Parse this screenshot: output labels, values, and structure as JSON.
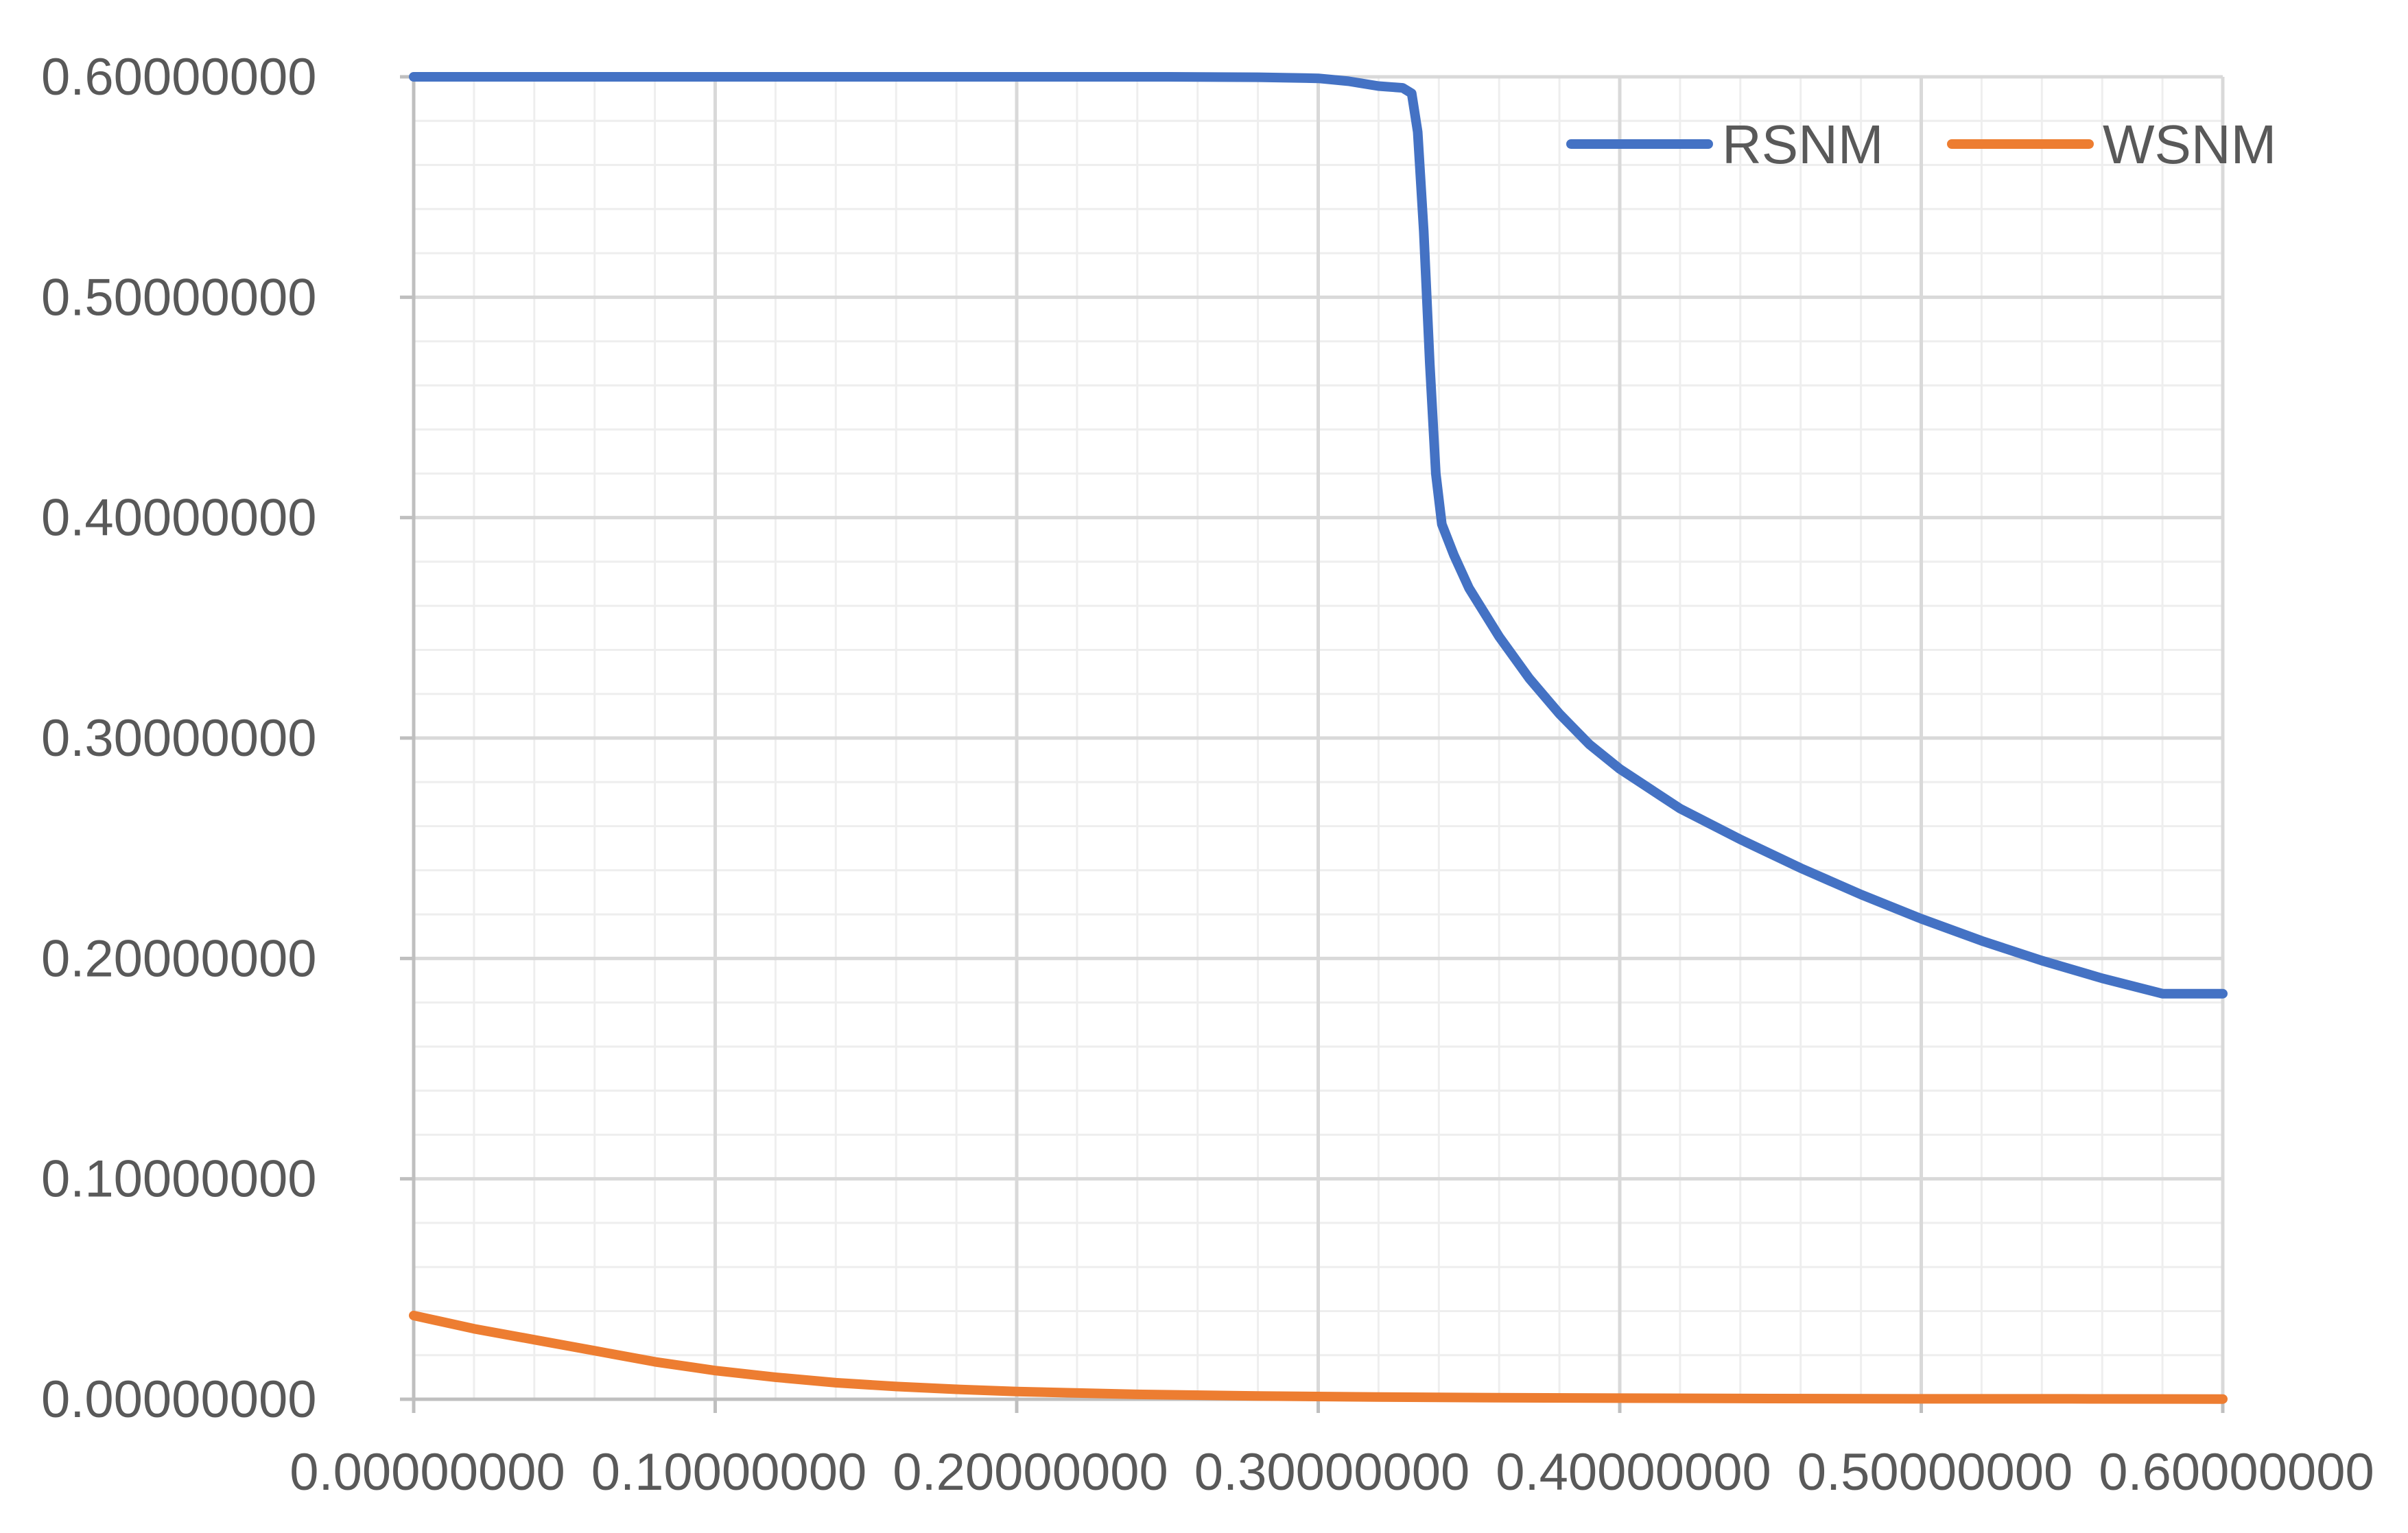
{
  "chart_data": {
    "type": "line",
    "title": "",
    "xlabel": "",
    "ylabel": "",
    "xlim": [
      0,
      0.6
    ],
    "ylim": [
      0,
      0.6
    ],
    "x_ticks": [
      "0.00000000",
      "0.10000000",
      "0.20000000",
      "0.30000000",
      "0.40000000",
      "0.50000000",
      "0.60000000"
    ],
    "y_ticks": [
      "0.00000000",
      "0.10000000",
      "0.20000000",
      "0.30000000",
      "0.40000000",
      "0.50000000",
      "0.60000000"
    ],
    "grid": {
      "major": true,
      "minor": true
    },
    "legend": {
      "position": "top-right"
    },
    "series": [
      {
        "name": "RSNM",
        "color": "#4472C4",
        "points": [
          [
            0.0,
            0.6
          ],
          [
            0.05,
            0.6
          ],
          [
            0.1,
            0.6
          ],
          [
            0.15,
            0.6
          ],
          [
            0.2,
            0.6
          ],
          [
            0.25,
            0.6
          ],
          [
            0.28,
            0.5998
          ],
          [
            0.3,
            0.5993
          ],
          [
            0.31,
            0.598
          ],
          [
            0.32,
            0.5958
          ],
          [
            0.328,
            0.595
          ],
          [
            0.331,
            0.5925
          ],
          [
            0.333,
            0.575
          ],
          [
            0.335,
            0.53
          ],
          [
            0.337,
            0.47
          ],
          [
            0.339,
            0.42
          ],
          [
            0.341,
            0.397
          ],
          [
            0.345,
            0.383
          ],
          [
            0.35,
            0.368
          ],
          [
            0.36,
            0.346
          ],
          [
            0.37,
            0.327
          ],
          [
            0.38,
            0.311
          ],
          [
            0.39,
            0.297
          ],
          [
            0.4,
            0.286
          ],
          [
            0.42,
            0.268
          ],
          [
            0.44,
            0.254
          ],
          [
            0.46,
            0.241
          ],
          [
            0.48,
            0.229
          ],
          [
            0.5,
            0.218
          ],
          [
            0.52,
            0.208
          ],
          [
            0.54,
            0.199
          ],
          [
            0.56,
            0.191
          ],
          [
            0.58,
            0.184
          ],
          [
            0.6,
            0.184
          ]
        ]
      },
      {
        "name": "WSNM",
        "color": "#ED7D31",
        "points": [
          [
            0.0,
            0.038
          ],
          [
            0.02,
            0.032
          ],
          [
            0.04,
            0.027
          ],
          [
            0.06,
            0.022
          ],
          [
            0.08,
            0.017
          ],
          [
            0.1,
            0.013
          ],
          [
            0.12,
            0.01
          ],
          [
            0.14,
            0.0075
          ],
          [
            0.16,
            0.0058
          ],
          [
            0.18,
            0.0045
          ],
          [
            0.2,
            0.0035
          ],
          [
            0.24,
            0.0022
          ],
          [
            0.28,
            0.0015
          ],
          [
            0.32,
            0.001
          ],
          [
            0.36,
            0.0007
          ],
          [
            0.4,
            0.0005
          ],
          [
            0.45,
            0.0003
          ],
          [
            0.5,
            0.0002
          ],
          [
            0.55,
            0.0002
          ],
          [
            0.6,
            0.0001
          ]
        ]
      }
    ]
  }
}
